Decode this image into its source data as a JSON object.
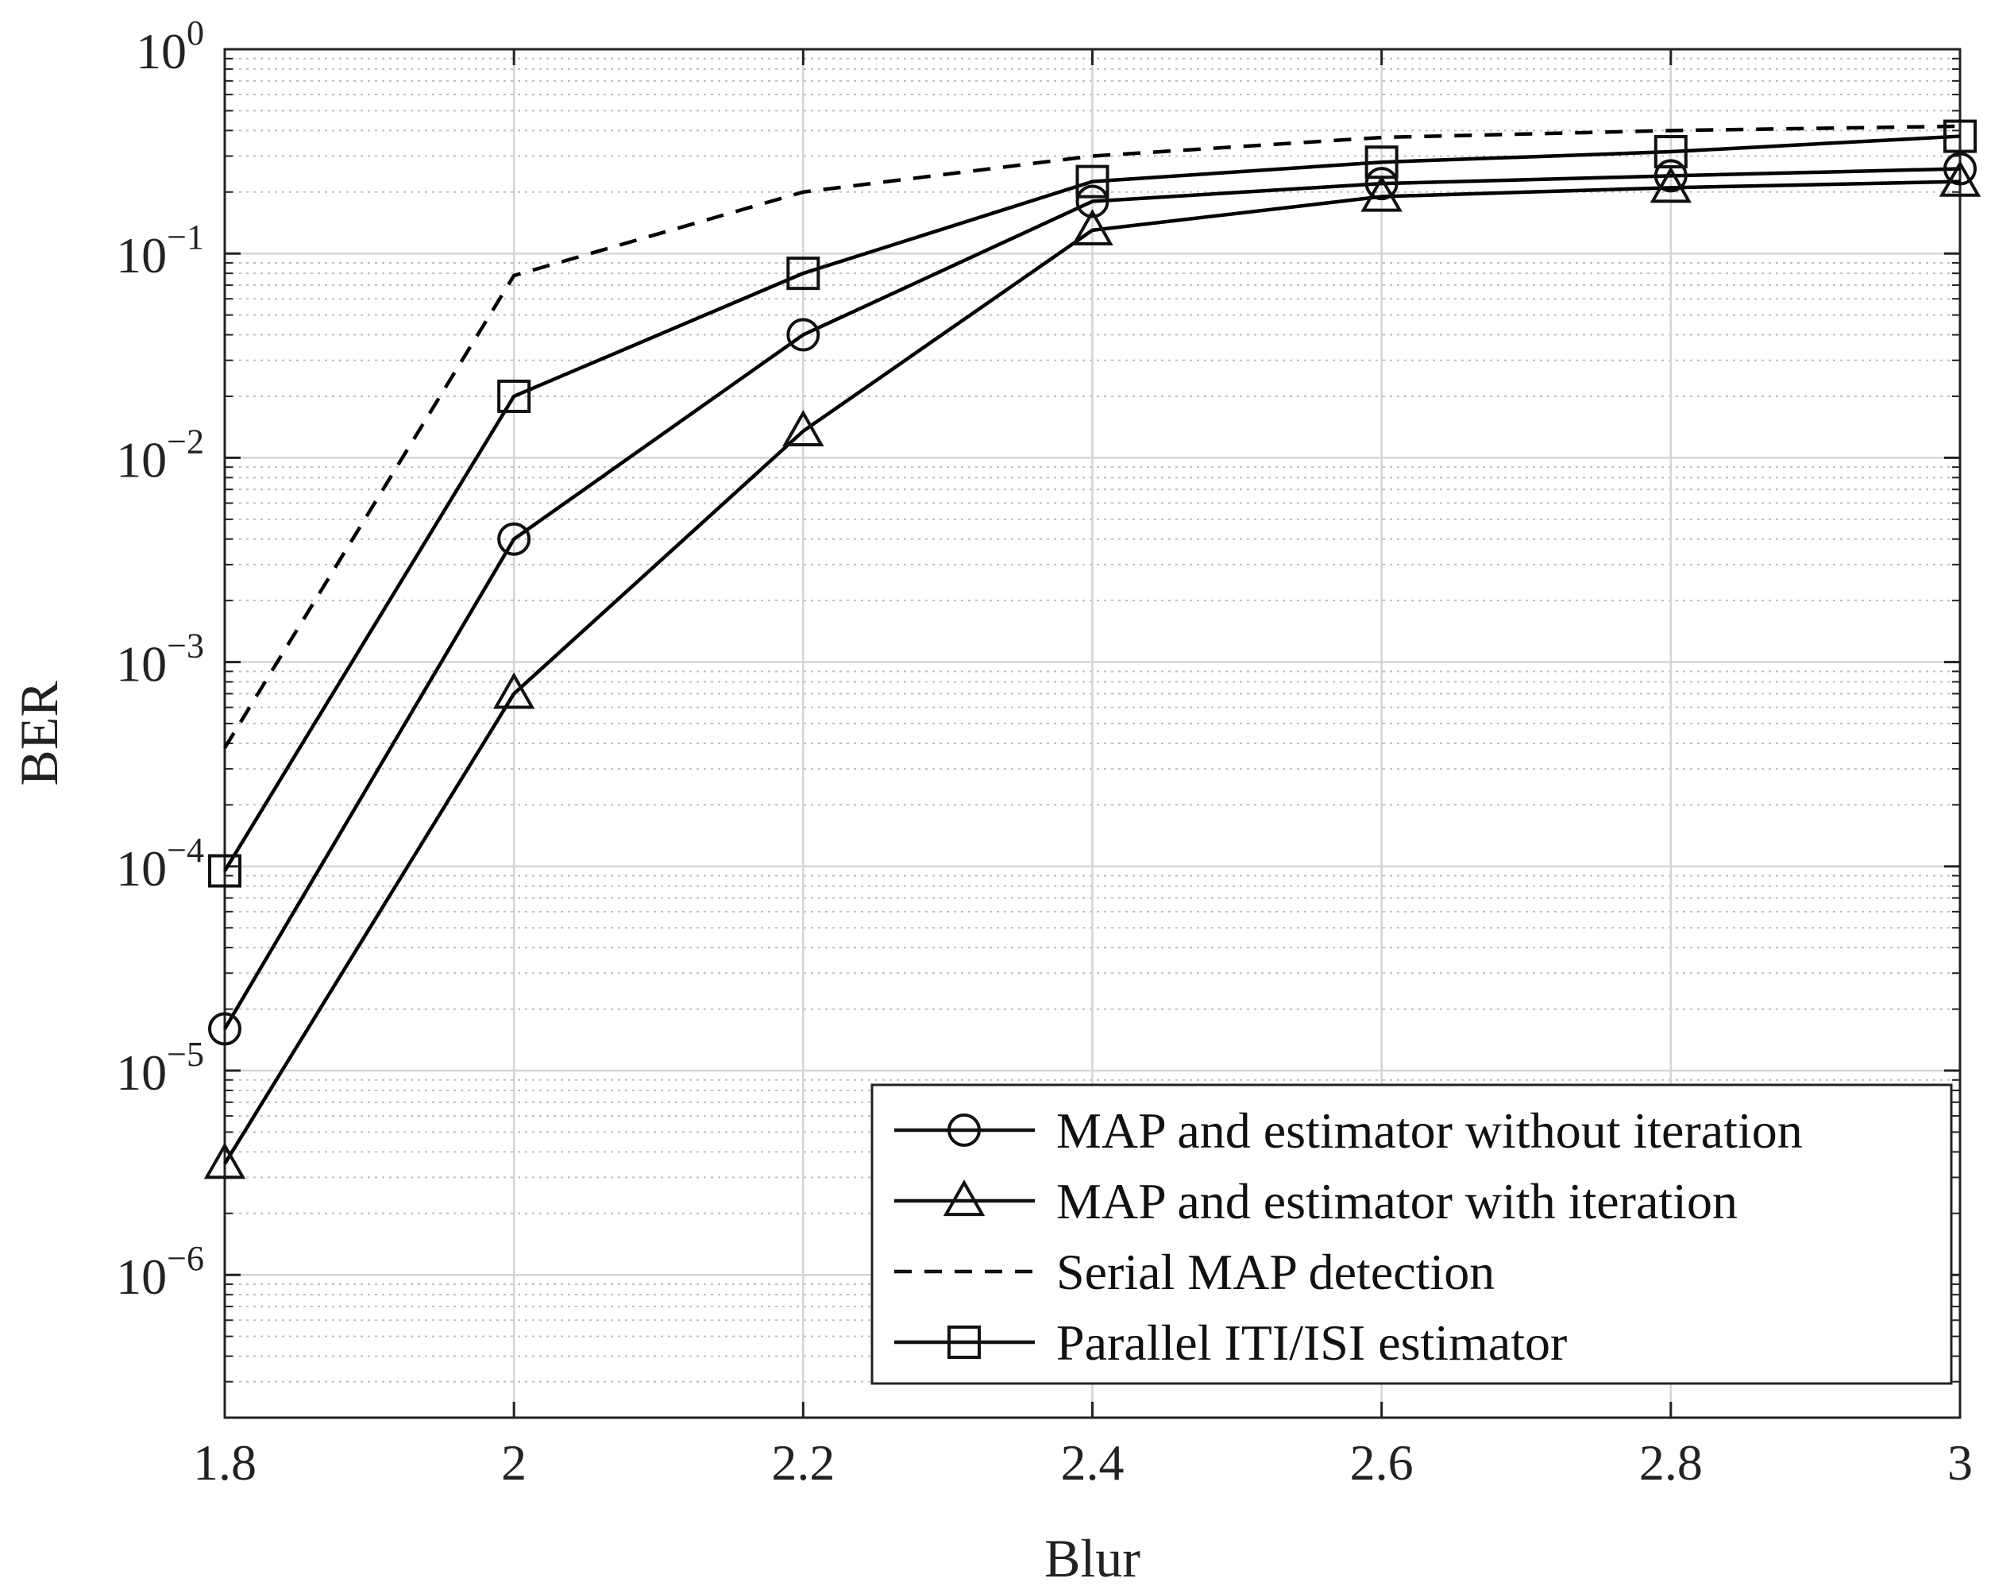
{
  "chart_data": {
    "type": "line",
    "title": "",
    "xlabel": "Blur",
    "ylabel": "BER",
    "x": [
      1.8,
      2.0,
      2.2,
      2.4,
      2.6,
      2.8,
      3.0
    ],
    "xlim": [
      1.8,
      3.0
    ],
    "x_ticks": [
      1.8,
      2.0,
      2.2,
      2.4,
      2.6,
      2.8,
      3.0
    ],
    "x_tick_labels": [
      "1.8",
      "2",
      "2.2",
      "2.4",
      "2.6",
      "2.8",
      "3"
    ],
    "yscale": "log",
    "ylim": [
      2e-07,
      1
    ],
    "y_ticks": [
      1e-06,
      1e-05,
      0.0001,
      0.001,
      0.01,
      0.1,
      1
    ],
    "y_tick_labels": [
      {
        "base": "10",
        "exp": "−6"
      },
      {
        "base": "10",
        "exp": "−5"
      },
      {
        "base": "10",
        "exp": "−4"
      },
      {
        "base": "10",
        "exp": "−3"
      },
      {
        "base": "10",
        "exp": "−2"
      },
      {
        "base": "10",
        "exp": "−1"
      },
      {
        "base": "10",
        "exp": "0"
      }
    ],
    "grid": true,
    "minor_grid": true,
    "legend_position": "bottom-right",
    "series": [
      {
        "name": "MAP and estimator without iteration",
        "marker": "circle",
        "line": "solid",
        "color": "#000000",
        "values": [
          1.6e-05,
          0.004,
          0.04,
          0.18,
          0.22,
          0.24,
          0.26
        ]
      },
      {
        "name": "MAP and estimator with iteration",
        "marker": "triangle",
        "line": "solid",
        "color": "#000000",
        "values": [
          3.5e-06,
          0.0007,
          0.0135,
          0.13,
          0.19,
          0.21,
          0.225
        ]
      },
      {
        "name": "Serial MAP detection",
        "marker": "none",
        "line": "dashed",
        "color": "#000000",
        "values": [
          0.00038,
          0.078,
          0.2,
          0.3,
          0.37,
          0.4,
          0.42
        ]
      },
      {
        "name": "Parallel ITI/ISI estimator",
        "marker": "square",
        "line": "solid",
        "color": "#000000",
        "values": [
          9.5e-05,
          0.02,
          0.08,
          0.225,
          0.28,
          0.315,
          0.375
        ]
      }
    ]
  }
}
